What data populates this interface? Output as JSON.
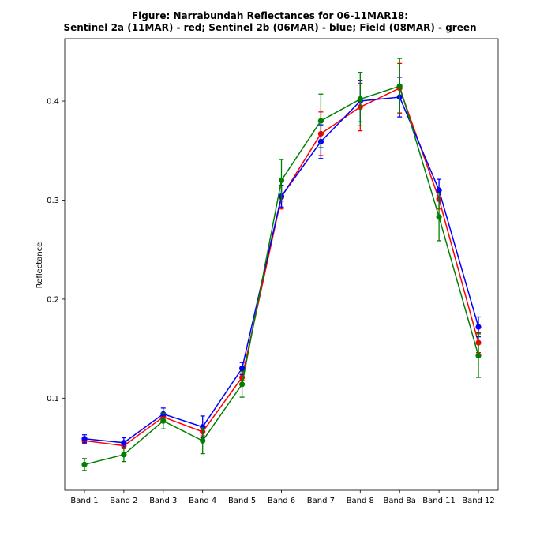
{
  "chart_data": {
    "type": "line",
    "title": "Figure: Narrabundah Reflectances for 06-11MAR18:",
    "subtitle": "Sentinel 2a (11MAR) - red; Sentinel 2b (06MAR) - blue; Field (08MAR) - green",
    "xlabel": "",
    "ylabel": "Reflectance",
    "categories": [
      "Band 1",
      "Band 2",
      "Band 3",
      "Band 4",
      "Band 5",
      "Band 6",
      "Band 7",
      "Band 8",
      "Band 8a",
      "Band 11",
      "Band 12"
    ],
    "ylim": [
      0.007,
      0.463
    ],
    "yticks": [
      0.1,
      0.2,
      0.3,
      0.4
    ],
    "ytick_labels": [
      "0.1",
      "0.2",
      "0.3",
      "0.4"
    ],
    "grid": false,
    "series": [
      {
        "color": "#ff0000",
        "values": [
          0.057,
          0.052,
          0.081,
          0.066,
          0.121,
          0.303,
          0.367,
          0.394,
          0.413,
          0.301,
          0.156
        ],
        "errors": [
          0.003,
          0.003,
          0.004,
          0.004,
          0.003,
          0.012,
          0.022,
          0.024,
          0.025,
          0.01,
          0.01
        ]
      },
      {
        "color": "#0000ff",
        "values": [
          0.059,
          0.055,
          0.084,
          0.071,
          0.13,
          0.304,
          0.359,
          0.4,
          0.404,
          0.31,
          0.172
        ],
        "errors": [
          0.004,
          0.005,
          0.006,
          0.011,
          0.006,
          0.011,
          0.017,
          0.021,
          0.02,
          0.011,
          0.01
        ]
      },
      {
        "color": "#008000",
        "values": [
          0.033,
          0.043,
          0.077,
          0.057,
          0.114,
          0.32,
          0.38,
          0.402,
          0.415,
          0.283,
          0.143
        ],
        "errors": [
          0.006,
          0.007,
          0.008,
          0.013,
          0.013,
          0.021,
          0.027,
          0.027,
          0.028,
          0.024,
          0.022
        ]
      }
    ]
  }
}
